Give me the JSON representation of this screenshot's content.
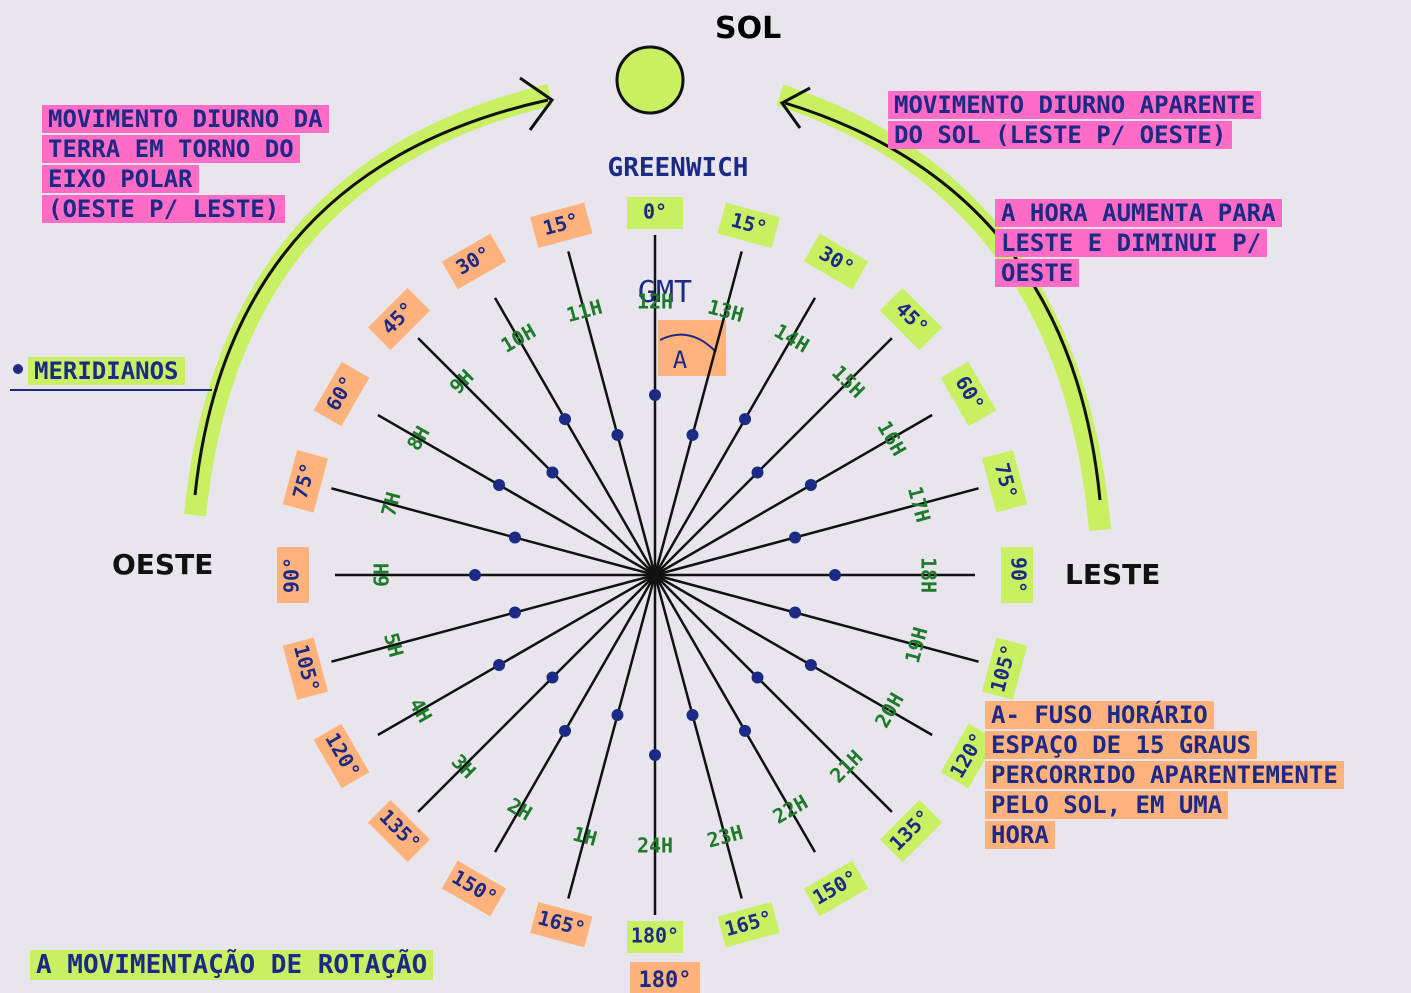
{
  "sun": {
    "label": "SOL"
  },
  "greenwich": {
    "label": "GREENWICH",
    "gmt": "GMT",
    "zone_mark": "A"
  },
  "left_note": {
    "lines": [
      "MOVIMENTO DIURNO DA",
      "TERRA EM TORNO DO",
      "EIXO POLAR",
      "(OESTE P/ LESTE)"
    ]
  },
  "right_note": {
    "lines": [
      "MOVIMENTO DIURNO APARENTE",
      "DO SOL (LESTE P/ OESTE)"
    ]
  },
  "hour_note": {
    "lines": [
      "A HORA AUMENTA PARA",
      "LESTE E DIMINUI P/",
      "OESTE"
    ]
  },
  "meridians_note": {
    "label": "MERIDIANOS"
  },
  "directions": {
    "west": "OESTE",
    "east": "LESTE"
  },
  "zone_note": {
    "lines": [
      "A- FUSO HORÁRIO",
      "ESPAÇO DE 15 GRAUS",
      "PERCORRIDO APARENTEMENTE",
      "PELO SOL, EM UMA",
      "HORA"
    ]
  },
  "bottom_note": {
    "label": "A MOVIMENTAÇÃO DE ROTAÇÃO"
  },
  "bottom_degree": {
    "label": "180°"
  },
  "meridians": [
    {
      "degree": "0°",
      "hour": "12H"
    },
    {
      "degree": "15°",
      "hour": "13H"
    },
    {
      "degree": "30°",
      "hour": "14H"
    },
    {
      "degree": "45°",
      "hour": "15H"
    },
    {
      "degree": "60°",
      "hour": "16H"
    },
    {
      "degree": "75°",
      "hour": "17H"
    },
    {
      "degree": "90°",
      "hour": "18H"
    },
    {
      "degree": "105°",
      "hour": "19H"
    },
    {
      "degree": "120°",
      "hour": "20H"
    },
    {
      "degree": "135°",
      "hour": "21H"
    },
    {
      "degree": "150°",
      "hour": "22H"
    },
    {
      "degree": "165°",
      "hour": "23H"
    },
    {
      "degree": "180°",
      "hour": "24H"
    },
    {
      "degree": "165°",
      "hour": "1H"
    },
    {
      "degree": "150°",
      "hour": "2H"
    },
    {
      "degree": "135°",
      "hour": "3H"
    },
    {
      "degree": "120°",
      "hour": "4H"
    },
    {
      "degree": "105°",
      "hour": "5H"
    },
    {
      "degree": "90°",
      "hour": "6H"
    },
    {
      "degree": "75°",
      "hour": "7H"
    },
    {
      "degree": "60°",
      "hour": "8H"
    },
    {
      "degree": "45°",
      "hour": "9H"
    },
    {
      "degree": "30°",
      "hour": "10H"
    },
    {
      "degree": "15°",
      "hour": "11H"
    }
  ]
}
